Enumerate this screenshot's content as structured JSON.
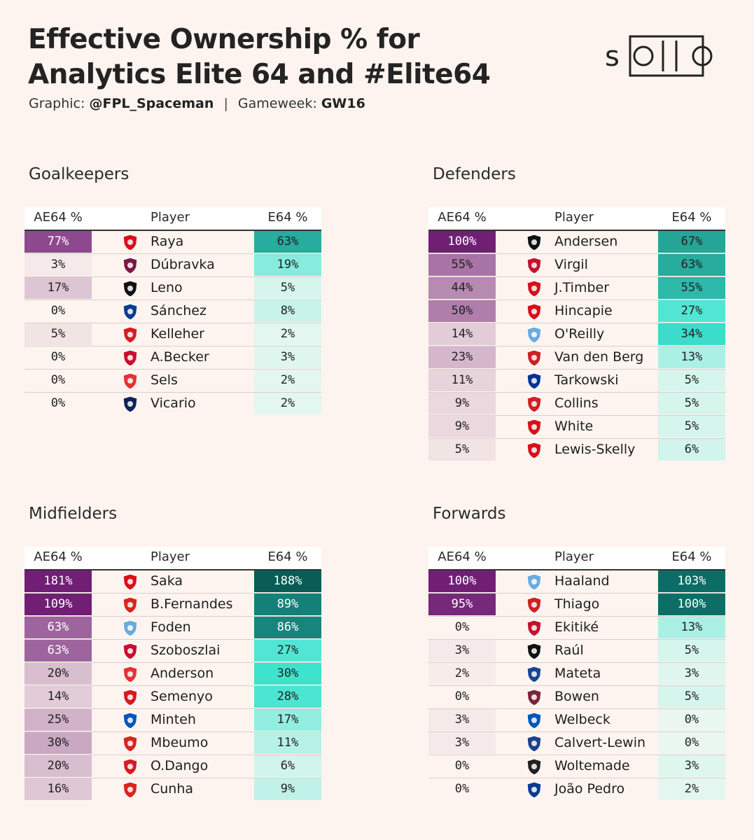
{
  "header": {
    "title_line1": "Effective Ownership % for",
    "title_line2": "Analytics Elite 64 and #Elite64",
    "graphic_label": "Graphic:",
    "graphic_author": "@FPL_Spaceman",
    "separator": "|",
    "gameweek_label": "Gameweek:",
    "gameweek_value": "GW16",
    "logo_text": "solio"
  },
  "columns": {
    "ae64": "AE64 %",
    "player": "Player",
    "e64": "E64 %"
  },
  "colors": {
    "ae64_scale": [
      "#fdf4ef",
      "#701f75"
    ],
    "e64_scale": [
      "#eaf7f1",
      "#0d6e67"
    ],
    "e64_mid": "#3ee3cf",
    "teams": {
      "ARS": "#d8101a",
      "BUR": "#7b1846",
      "FUL": "#111111",
      "CHE": "#0a3c8f",
      "BRE": "#d11f24",
      "LIV": "#c8102e",
      "NFO": "#e53233",
      "TOT": "#132257",
      "MCI": "#6cabdd",
      "EVE": "#003399",
      "MUN": "#d9261c",
      "BOU": "#d71920",
      "BHA": "#0057b8",
      "CRY": "#1b458f",
      "WHU": "#7a263a",
      "LEE": "#1d428a",
      "NEW": "#241f20"
    }
  },
  "chart_data": [
    {
      "type": "table",
      "title": "Goalkeepers",
      "columns": [
        "AE64 %",
        "Player",
        "E64 %"
      ],
      "rows": [
        {
          "ae64": 77,
          "player": "Raya",
          "team": "ARS",
          "team_icon": "arsenal-crest-icon",
          "e64": 63
        },
        {
          "ae64": 3,
          "player": "Dúbravka",
          "team": "BUR",
          "team_icon": "burnley-crest-icon",
          "e64": 19
        },
        {
          "ae64": 17,
          "player": "Leno",
          "team": "FUL",
          "team_icon": "fulham-crest-icon",
          "e64": 5
        },
        {
          "ae64": 0,
          "player": "Sánchez",
          "team": "CHE",
          "team_icon": "chelsea-crest-icon",
          "e64": 8
        },
        {
          "ae64": 5,
          "player": "Kelleher",
          "team": "BRE",
          "team_icon": "brentford-crest-icon",
          "e64": 2
        },
        {
          "ae64": 0,
          "player": "A.Becker",
          "team": "LIV",
          "team_icon": "liverpool-crest-icon",
          "e64": 3
        },
        {
          "ae64": 0,
          "player": "Sels",
          "team": "NFO",
          "team_icon": "nottingham-forest-crest-icon",
          "e64": 2
        },
        {
          "ae64": 0,
          "player": "Vicario",
          "team": "TOT",
          "team_icon": "tottenham-crest-icon",
          "e64": 2
        }
      ]
    },
    {
      "type": "table",
      "title": "Defenders",
      "columns": [
        "AE64 %",
        "Player",
        "E64 %"
      ],
      "rows": [
        {
          "ae64": 100,
          "player": "Andersen",
          "team": "FUL",
          "team_icon": "fulham-crest-icon",
          "e64": 67
        },
        {
          "ae64": 55,
          "player": "Virgil",
          "team": "LIV",
          "team_icon": "liverpool-crest-icon",
          "e64": 63
        },
        {
          "ae64": 44,
          "player": "J.Timber",
          "team": "ARS",
          "team_icon": "arsenal-crest-icon",
          "e64": 55
        },
        {
          "ae64": 50,
          "player": "Hincapie",
          "team": "ARS",
          "team_icon": "arsenal-crest-icon",
          "e64": 27
        },
        {
          "ae64": 14,
          "player": "O'Reilly",
          "team": "MCI",
          "team_icon": "man-city-crest-icon",
          "e64": 34
        },
        {
          "ae64": 23,
          "player": "Van den Berg",
          "team": "BRE",
          "team_icon": "brentford-crest-icon",
          "e64": 13
        },
        {
          "ae64": 11,
          "player": "Tarkowski",
          "team": "EVE",
          "team_icon": "everton-crest-icon",
          "e64": 5
        },
        {
          "ae64": 9,
          "player": "Collins",
          "team": "BRE",
          "team_icon": "brentford-crest-icon",
          "e64": 5
        },
        {
          "ae64": 9,
          "player": "White",
          "team": "ARS",
          "team_icon": "arsenal-crest-icon",
          "e64": 5
        },
        {
          "ae64": 5,
          "player": "Lewis-Skelly",
          "team": "ARS",
          "team_icon": "arsenal-crest-icon",
          "e64": 6
        }
      ]
    },
    {
      "type": "table",
      "title": "Midfielders",
      "columns": [
        "AE64 %",
        "Player",
        "E64 %"
      ],
      "rows": [
        {
          "ae64": 181,
          "player": "Saka",
          "team": "ARS",
          "team_icon": "arsenal-crest-icon",
          "e64": 188
        },
        {
          "ae64": 109,
          "player": "B.Fernandes",
          "team": "MUN",
          "team_icon": "man-united-crest-icon",
          "e64": 89
        },
        {
          "ae64": 63,
          "player": "Foden",
          "team": "MCI",
          "team_icon": "man-city-crest-icon",
          "e64": 86
        },
        {
          "ae64": 63,
          "player": "Szoboszlai",
          "team": "LIV",
          "team_icon": "liverpool-crest-icon",
          "e64": 27
        },
        {
          "ae64": 20,
          "player": "Anderson",
          "team": "NFO",
          "team_icon": "nottingham-forest-crest-icon",
          "e64": 30
        },
        {
          "ae64": 14,
          "player": "Semenyo",
          "team": "BOU",
          "team_icon": "bournemouth-crest-icon",
          "e64": 28
        },
        {
          "ae64": 25,
          "player": "Minteh",
          "team": "BHA",
          "team_icon": "brighton-crest-icon",
          "e64": 17
        },
        {
          "ae64": 30,
          "player": "Mbeumo",
          "team": "MUN",
          "team_icon": "man-united-crest-icon",
          "e64": 11
        },
        {
          "ae64": 20,
          "player": "O.Dango",
          "team": "BRE",
          "team_icon": "brentford-crest-icon",
          "e64": 6
        },
        {
          "ae64": 16,
          "player": "Cunha",
          "team": "MUN",
          "team_icon": "man-united-crest-icon",
          "e64": 9
        }
      ]
    },
    {
      "type": "table",
      "title": "Forwards",
      "columns": [
        "AE64 %",
        "Player",
        "E64 %"
      ],
      "rows": [
        {
          "ae64": 100,
          "player": "Haaland",
          "team": "MCI",
          "team_icon": "man-city-crest-icon",
          "e64": 103
        },
        {
          "ae64": 95,
          "player": "Thiago",
          "team": "BRE",
          "team_icon": "brentford-crest-icon",
          "e64": 100
        },
        {
          "ae64": 0,
          "player": "Ekitiké",
          "team": "LIV",
          "team_icon": "liverpool-crest-icon",
          "e64": 13
        },
        {
          "ae64": 3,
          "player": "Raúl",
          "team": "FUL",
          "team_icon": "fulham-crest-icon",
          "e64": 5
        },
        {
          "ae64": 2,
          "player": "Mateta",
          "team": "CRY",
          "team_icon": "crystal-palace-crest-icon",
          "e64": 3
        },
        {
          "ae64": 0,
          "player": "Bowen",
          "team": "WHU",
          "team_icon": "west-ham-crest-icon",
          "e64": 5
        },
        {
          "ae64": 3,
          "player": "Welbeck",
          "team": "BHA",
          "team_icon": "brighton-crest-icon",
          "e64": 0
        },
        {
          "ae64": 3,
          "player": "Calvert-Lewin",
          "team": "LEE",
          "team_icon": "leeds-crest-icon",
          "e64": 0
        },
        {
          "ae64": 0,
          "player": "Woltemade",
          "team": "NEW",
          "team_icon": "newcastle-crest-icon",
          "e64": 3
        },
        {
          "ae64": 0,
          "player": "João Pedro",
          "team": "CHE",
          "team_icon": "chelsea-crest-icon",
          "e64": 2
        }
      ]
    }
  ]
}
